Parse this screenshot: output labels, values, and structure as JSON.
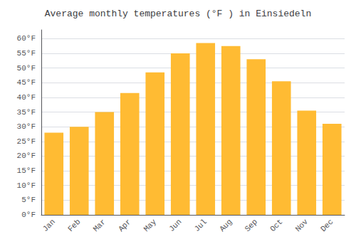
{
  "chart_data": {
    "type": "bar",
    "title": "Average monthly temperatures (°F ) in Einsiedeln",
    "categories": [
      "Jan",
      "Feb",
      "Mar",
      "Apr",
      "May",
      "Jun",
      "Jul",
      "Aug",
      "Sep",
      "Oct",
      "Nov",
      "Dec"
    ],
    "values": [
      28,
      30,
      35,
      41.5,
      48.5,
      55,
      58.5,
      57.5,
      53,
      45.5,
      35.5,
      31
    ],
    "color": "#FFBB33",
    "ylim": [
      0,
      63
    ],
    "yticks": [
      {
        "value": 0,
        "label": "0°F"
      },
      {
        "value": 5,
        "label": "5°F"
      },
      {
        "value": 10,
        "label": "10°F"
      },
      {
        "value": 15,
        "label": "15°F"
      },
      {
        "value": 20,
        "label": "20°F"
      },
      {
        "value": 25,
        "label": "25°F"
      },
      {
        "value": 30,
        "label": "30°F"
      },
      {
        "value": 35,
        "label": "35°F"
      },
      {
        "value": 40,
        "label": "40°F"
      },
      {
        "value": 45,
        "label": "45°F"
      },
      {
        "value": 50,
        "label": "50°F"
      },
      {
        "value": 55,
        "label": "55°F"
      },
      {
        "value": 60,
        "label": "60°F"
      }
    ],
    "grid": true
  }
}
